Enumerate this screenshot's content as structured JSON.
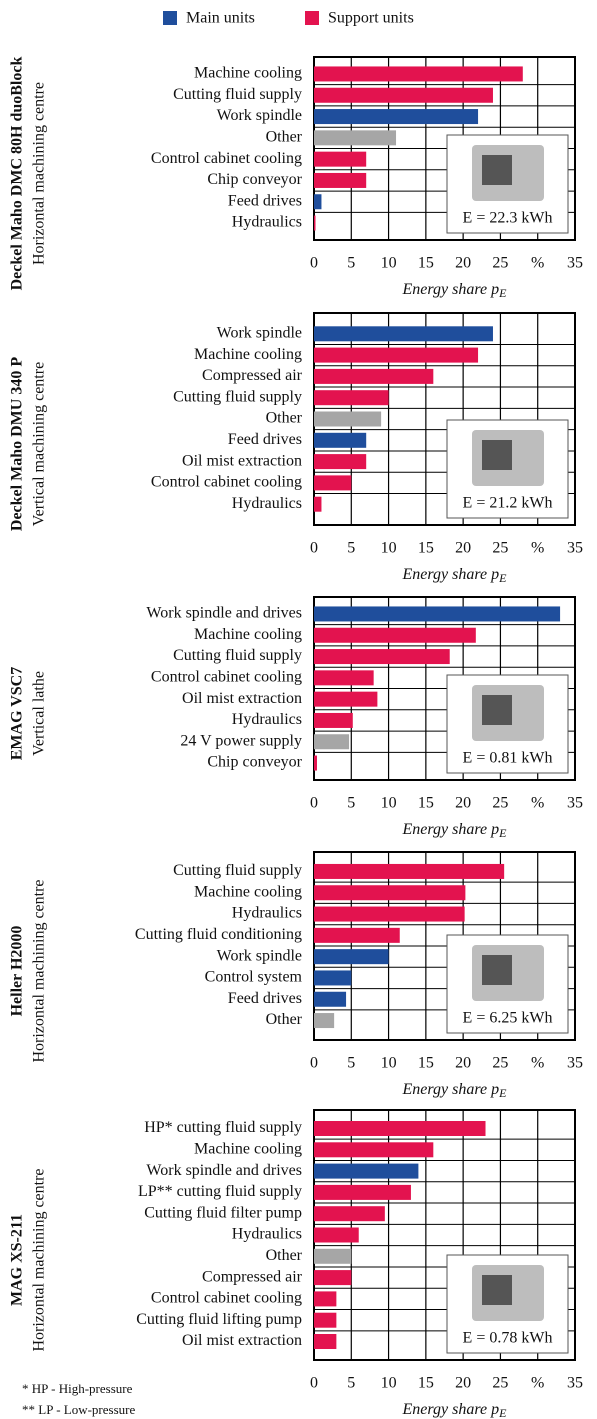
{
  "legend": [
    {
      "name": "Main units",
      "color": "#1f4e9c"
    },
    {
      "name": "Support units",
      "color": "#e3134f"
    }
  ],
  "footnotes": [
    "* HP - High-pressure",
    "** LP - Low-pressure"
  ],
  "chart_data": [
    {
      "type": "bar",
      "orientation": "horizontal",
      "title": "Deckel Maho DMC 80H duoBlock",
      "subtitle": "Horizontal machining centre",
      "categories": [
        "Machine cooling",
        "Cutting fluid supply",
        "Work spindle",
        "Other",
        "Control cabinet cooling",
        "Chip conveyor",
        "Feed drives",
        "Hydraulics"
      ],
      "values": [
        28,
        24,
        22,
        11,
        7,
        7,
        1,
        0.2
      ],
      "colors": [
        "#e3134f",
        "#e3134f",
        "#1f4e9c",
        "#a6a6a6",
        "#e3134f",
        "#e3134f",
        "#1f4e9c",
        "#e3134f"
      ],
      "xlim": [
        0,
        35
      ],
      "xticks": [
        0,
        5,
        10,
        15,
        20,
        25,
        {
          "value": 30,
          "label": "%"
        },
        35
      ],
      "xlabel": "Energy share p",
      "xlabel_sub": "E",
      "annotation": "E = 22.3 kWh",
      "grid": true
    },
    {
      "type": "bar",
      "orientation": "horizontal",
      "title": "Deckel Maho DMU 340 P",
      "subtitle": "Vertical machining centre",
      "categories": [
        "Work spindle",
        "Machine cooling",
        "Compressed air",
        "Cutting fluid supply",
        "Other",
        "Feed drives",
        "Oil mist extraction",
        "Control cabinet cooling",
        "Hydraulics"
      ],
      "values": [
        24,
        22,
        16,
        10,
        9,
        7,
        7,
        5,
        1
      ],
      "colors": [
        "#1f4e9c",
        "#e3134f",
        "#e3134f",
        "#e3134f",
        "#a6a6a6",
        "#1f4e9c",
        "#e3134f",
        "#e3134f",
        "#e3134f"
      ],
      "xlim": [
        0,
        35
      ],
      "xticks": [
        0,
        5,
        10,
        15,
        20,
        25,
        {
          "value": 30,
          "label": "%"
        },
        35
      ],
      "xlabel": "Energy share p",
      "xlabel_sub": "E",
      "annotation": "E = 21.2 kWh",
      "grid": true
    },
    {
      "type": "bar",
      "orientation": "horizontal",
      "title": "EMAG VSC7",
      "subtitle": "Vertical lathe",
      "categories": [
        "Work spindle and drives",
        "Machine cooling",
        "Cutting fluid supply",
        "Control cabinet cooling",
        "Oil mist extraction",
        "Hydraulics",
        "24 V power supply",
        "Chip conveyor"
      ],
      "values": [
        33,
        21.7,
        18.2,
        8,
        8.5,
        5.2,
        4.7,
        0.4
      ],
      "colors": [
        "#1f4e9c",
        "#e3134f",
        "#e3134f",
        "#e3134f",
        "#e3134f",
        "#e3134f",
        "#a6a6a6",
        "#e3134f"
      ],
      "xlim": [
        0,
        35
      ],
      "xticks": [
        0,
        5,
        10,
        15,
        20,
        25,
        {
          "value": 30,
          "label": "%"
        },
        35
      ],
      "xlabel": "Energy share p",
      "xlabel_sub": "E",
      "annotation": "E = 0.81 kWh",
      "grid": true
    },
    {
      "type": "bar",
      "orientation": "horizontal",
      "title": "Heller H2000",
      "subtitle": "Horizontal machining centre",
      "categories": [
        "Cutting fluid supply",
        "Machine cooling",
        "Hydraulics",
        "Cutting fluid conditioning",
        "Work spindle",
        "Control system",
        "Feed drives",
        "Other"
      ],
      "values": [
        25.5,
        20.3,
        20.2,
        11.5,
        10,
        5,
        4.3,
        2.7
      ],
      "colors": [
        "#e3134f",
        "#e3134f",
        "#e3134f",
        "#e3134f",
        "#1f4e9c",
        "#1f4e9c",
        "#1f4e9c",
        "#a6a6a6"
      ],
      "xlim": [
        0,
        35
      ],
      "xticks": [
        0,
        5,
        10,
        15,
        20,
        25,
        {
          "value": 30,
          "label": "%"
        },
        35
      ],
      "xlabel": "Energy share p",
      "xlabel_sub": "E",
      "annotation": "E = 6.25 kWh",
      "grid": true
    },
    {
      "type": "bar",
      "orientation": "horizontal",
      "title": "MAG XS-211",
      "subtitle": "Horizontal machining centre",
      "categories": [
        "HP* cutting fluid supply",
        "Machine cooling",
        "Work spindle and drives",
        "LP** cutting fluid supply",
        "Cutting fluid filter pump",
        "Hydraulics",
        "Other",
        "Compressed air",
        "Control cabinet cooling",
        "Cutting fluid lifting pump",
        "Oil mist extraction"
      ],
      "values": [
        23,
        16,
        14,
        13,
        9.5,
        6,
        5,
        5,
        3,
        3,
        3
      ],
      "colors": [
        "#e3134f",
        "#e3134f",
        "#1f4e9c",
        "#e3134f",
        "#e3134f",
        "#e3134f",
        "#a6a6a6",
        "#e3134f",
        "#e3134f",
        "#e3134f",
        "#e3134f"
      ],
      "xlim": [
        0,
        35
      ],
      "xticks": [
        0,
        5,
        10,
        15,
        20,
        25,
        {
          "value": 30,
          "label": "%"
        },
        35
      ],
      "xlabel": "Energy share p",
      "xlabel_sub": "E",
      "annotation": "E = 0.78 kWh",
      "grid": true
    }
  ]
}
